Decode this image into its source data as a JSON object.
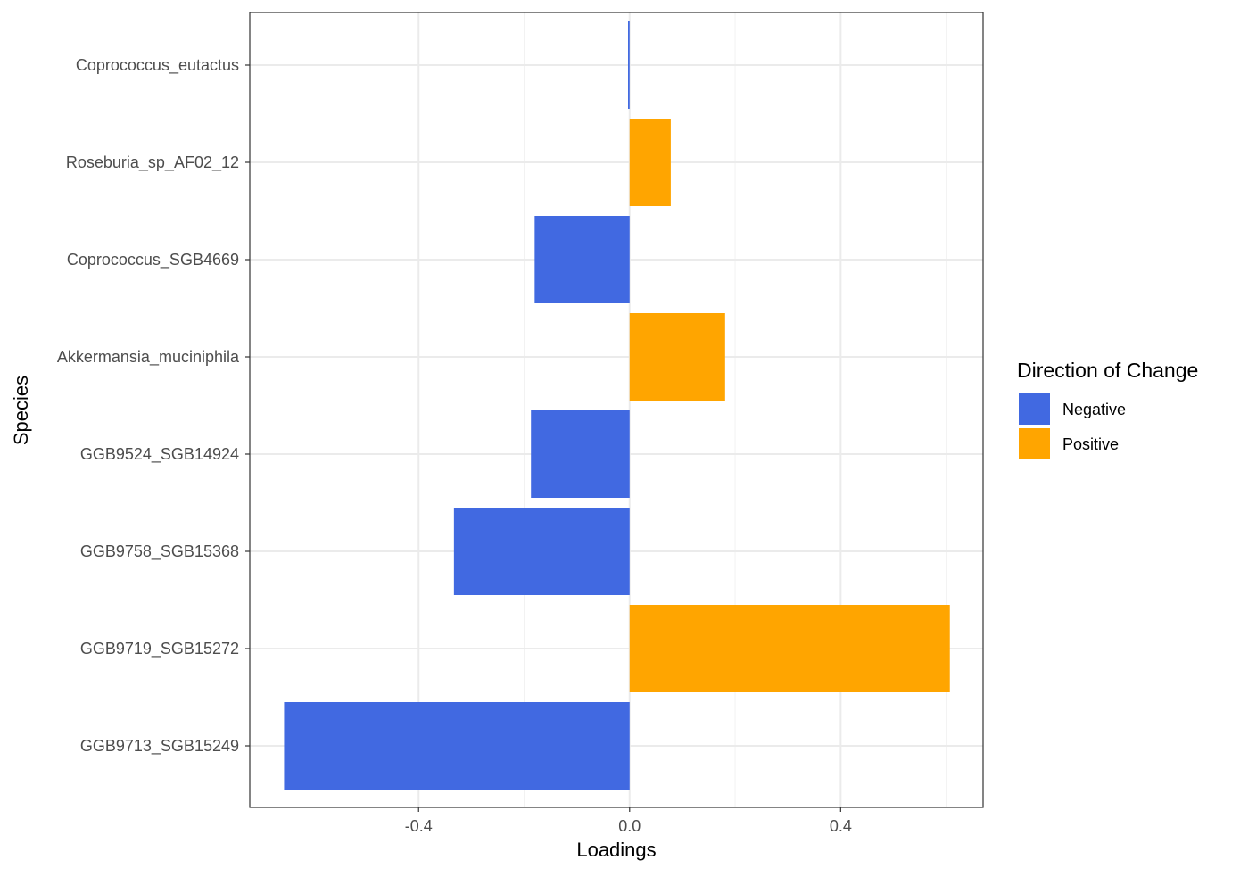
{
  "chart_data": {
    "type": "bar",
    "orientation": "horizontal",
    "title": "",
    "xlabel": "Loadings",
    "ylabel": "Species",
    "xlim": [
      -0.72,
      0.67
    ],
    "xticks": [
      -0.4,
      0.0,
      0.4
    ],
    "xtick_labels": [
      "-0.4",
      "0.0",
      "0.4"
    ],
    "grid": true,
    "categories": [
      "Coprococcus_eutactus",
      "Roseburia_sp_AF02_12",
      "Coprococcus_SGB4669",
      "Akkermansia_muciniphila",
      "GGB9524_SGB14924",
      "GGB9758_SGB15368",
      "GGB9719_SGB15272",
      "GGB9713_SGB15249"
    ],
    "values": [
      -0.003,
      0.078,
      -0.18,
      0.181,
      -0.187,
      -0.333,
      0.607,
      -0.655
    ],
    "direction": [
      "Negative",
      "Positive",
      "Negative",
      "Positive",
      "Negative",
      "Negative",
      "Positive",
      "Negative"
    ],
    "legend": {
      "title": "Direction of Change",
      "position": "right",
      "entries": [
        {
          "label": "Negative",
          "color": "#4169e1"
        },
        {
          "label": "Positive",
          "color": "#ffa500"
        }
      ]
    }
  }
}
